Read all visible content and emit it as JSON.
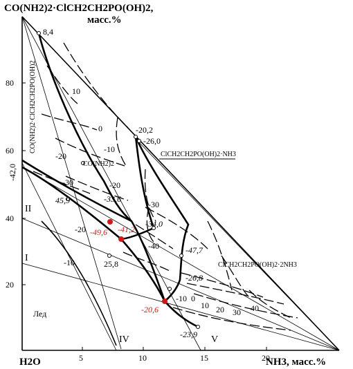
{
  "chart_data": {
    "type": "ternary-phase-diagram",
    "title": {
      "line1": "CO(NH2)2·ClCH2CH2PO(OH)2,",
      "line2": "масс.%"
    },
    "axes": {
      "x": {
        "label": "NH3, масс.%",
        "ticks": [
          "5",
          "10",
          "15",
          "20"
        ]
      },
      "y": {
        "ticks": [
          "20",
          "40",
          "60",
          "80"
        ]
      },
      "origin_label": "H2O"
    },
    "phase_fields": {
      "urea_complex": "CO(NH2)2·ClCH2CH2PO(OH)2",
      "urea": "CO(NH2)2",
      "ammonium_1": "ClCH2CH2PO(OH)2·NH3",
      "ammonium_2": "ClCH2CH2PO(OH)2·2NH3",
      "ice": "Лед"
    },
    "sections": [
      "I",
      "II",
      "IV",
      "V"
    ],
    "points": [
      {
        "label": "8,4",
        "highlight": false
      },
      {
        "label": "-20,2",
        "highlight": false
      },
      {
        "label": "-26,0",
        "highlight": false
      },
      {
        "label": "-42,0",
        "highlight": false
      },
      {
        "label": "45,9",
        "highlight": false
      },
      {
        "label": "-33,6",
        "highlight": false
      },
      {
        "label": "-34,0",
        "highlight": false
      },
      {
        "label": "-47,7",
        "highlight": false
      },
      {
        "label": "25,8",
        "highlight": false
      },
      {
        "label": "-26,8",
        "highlight": false
      },
      {
        "label": "-23,9",
        "highlight": false
      },
      {
        "label": "-49,6",
        "highlight": true
      },
      {
        "label": "-41,2",
        "highlight": true
      },
      {
        "label": "-20,6",
        "highlight": true
      }
    ],
    "isotherm_labels": [
      "10",
      "0",
      "-10",
      "-20",
      "-30",
      "-20",
      "-20",
      "-10",
      "-30",
      "-40",
      "-10",
      "0",
      "10",
      "20",
      "30",
      "40"
    ],
    "colors": {
      "lines": "#000000",
      "highlight": "#d01818"
    }
  }
}
